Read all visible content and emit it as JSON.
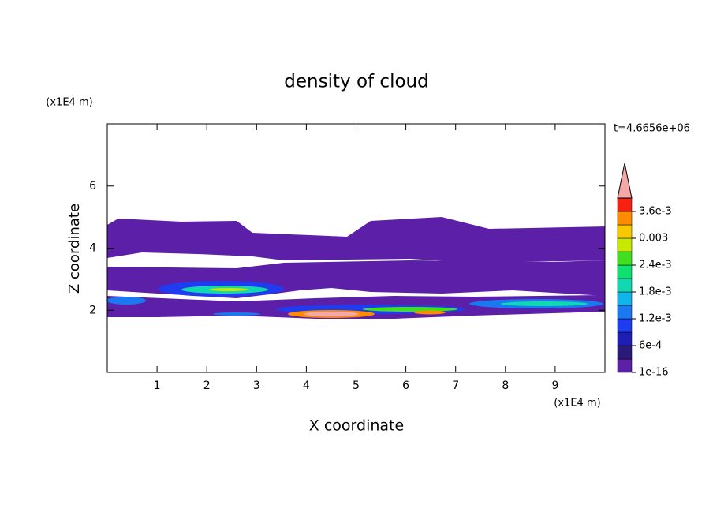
{
  "chart_data": {
    "type": "contour",
    "title": "density of cloud",
    "annotation": "t=4.6656e+06",
    "xlabel": "X coordinate",
    "xunit": "(x1E4 m)",
    "ylabel": "Z coordinate",
    "yunit": "(x1E4 m)",
    "xlim": [
      0,
      10
    ],
    "ylim": [
      0,
      8
    ],
    "xticks": [
      1,
      2,
      3,
      4,
      5,
      6,
      7,
      8,
      9
    ],
    "yticks": [
      2,
      4,
      6
    ],
    "colorbar": {
      "lim": [
        1e-16,
        0.0039
      ],
      "colors": [
        "#5b1fa8",
        "#2b1a7a",
        "#1e1eb4",
        "#1f3cf0",
        "#1a78f0",
        "#10b4e8",
        "#10d8b0",
        "#10e070",
        "#40e020",
        "#c8e800",
        "#f8c800",
        "#ff8c00",
        "#f82010"
      ],
      "extend_color": "#f4a8a8",
      "ticks": [
        {
          "value": 1e-16,
          "label": "1e-16"
        },
        {
          "value": 0.0006,
          "label": "6e-4"
        },
        {
          "value": 0.0012,
          "label": "1.2e-3"
        },
        {
          "value": 0.0018,
          "label": "1.8e-3"
        },
        {
          "value": 0.0024,
          "label": "2.4e-3"
        },
        0.003,
        {
          "value": 0.0036,
          "label": "3.6e-3"
        }
      ]
    }
  }
}
